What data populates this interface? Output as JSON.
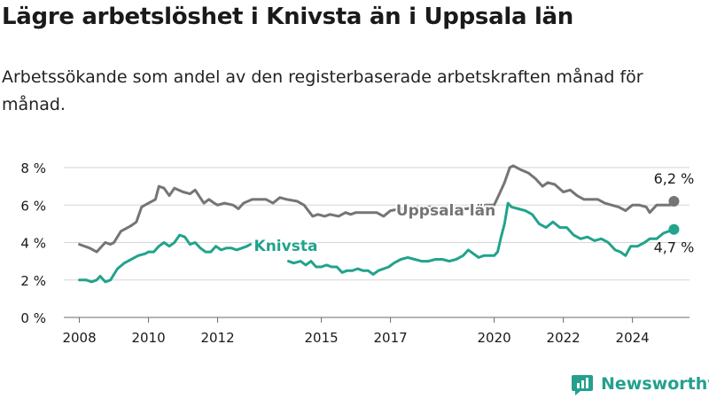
{
  "header": {
    "title": "Lägre arbetslöshet i Knivsta än i Uppsala län",
    "subtitle": "Arbetssökande som andel av den registerbaserade arbetskraften månad för månad."
  },
  "brand": {
    "name": "Newsworthy",
    "icon": "newsworthy-logo-icon",
    "color": "#24a08d"
  },
  "chart_data": {
    "type": "line",
    "ylim": [
      0,
      8
    ],
    "yticks": [
      0,
      2,
      4,
      6,
      8
    ],
    "ytick_labels": [
      "0 %",
      "2 %",
      "4 %",
      "6 %",
      "8 %"
    ],
    "xlim": [
      2007.55,
      2025.65
    ],
    "xticks": [
      2008,
      2010,
      2012,
      2015,
      2017,
      2020,
      2022,
      2024
    ],
    "xtick_labels": [
      "2008",
      "2010",
      "2012",
      "2015",
      "2017",
      "2020",
      "2022",
      "2024"
    ],
    "grid": true,
    "series": [
      {
        "name": "Uppsala län",
        "color": "#757476",
        "end_label": "6,2 %",
        "points": [
          [
            2008.0,
            3.9
          ],
          [
            2008.3,
            3.7
          ],
          [
            2008.5,
            3.5
          ],
          [
            2008.75,
            4.0
          ],
          [
            2008.9,
            3.9
          ],
          [
            2009.0,
            4.0
          ],
          [
            2009.2,
            4.6
          ],
          [
            2009.5,
            4.9
          ],
          [
            2009.65,
            5.1
          ],
          [
            2009.8,
            5.9
          ],
          [
            2010.0,
            6.1
          ],
          [
            2010.2,
            6.3
          ],
          [
            2010.3,
            7.0
          ],
          [
            2010.45,
            6.9
          ],
          [
            2010.6,
            6.5
          ],
          [
            2010.75,
            6.9
          ],
          [
            2011.0,
            6.7
          ],
          [
            2011.2,
            6.6
          ],
          [
            2011.35,
            6.8
          ],
          [
            2011.6,
            6.1
          ],
          [
            2011.75,
            6.3
          ],
          [
            2011.9,
            6.1
          ],
          [
            2012.0,
            6.0
          ],
          [
            2012.2,
            6.1
          ],
          [
            2012.45,
            6.0
          ],
          [
            2012.6,
            5.8
          ],
          [
            2012.75,
            6.1
          ],
          [
            2013.0,
            6.3
          ],
          [
            2013.2,
            6.3
          ],
          [
            2013.4,
            6.3
          ],
          [
            2013.6,
            6.1
          ],
          [
            2013.8,
            6.4
          ],
          [
            2014.0,
            6.3
          ],
          [
            2014.3,
            6.2
          ],
          [
            2014.5,
            6.0
          ],
          [
            2014.75,
            5.4
          ],
          [
            2014.9,
            5.5
          ],
          [
            2015.1,
            5.4
          ],
          [
            2015.25,
            5.5
          ],
          [
            2015.5,
            5.4
          ],
          [
            2015.7,
            5.6
          ],
          [
            2015.85,
            5.5
          ],
          [
            2016.0,
            5.6
          ],
          [
            2016.3,
            5.6
          ],
          [
            2016.6,
            5.6
          ],
          [
            2016.8,
            5.4
          ],
          [
            2017.0,
            5.7
          ],
          [
            2017.3,
            5.8
          ],
          [
            2017.5,
            5.9
          ],
          [
            2017.75,
            5.9
          ],
          [
            2018.0,
            5.9
          ],
          [
            2018.3,
            5.9
          ],
          [
            2018.6,
            5.7
          ],
          [
            2018.9,
            5.8
          ],
          [
            2019.2,
            5.8
          ],
          [
            2019.5,
            5.9
          ],
          [
            2019.75,
            6.0
          ],
          [
            2020.0,
            6.0
          ],
          [
            2020.15,
            6.6
          ],
          [
            2020.3,
            7.2
          ],
          [
            2020.45,
            8.0
          ],
          [
            2020.55,
            8.1
          ],
          [
            2020.75,
            7.9
          ],
          [
            2021.0,
            7.7
          ],
          [
            2021.2,
            7.4
          ],
          [
            2021.4,
            7.0
          ],
          [
            2021.55,
            7.2
          ],
          [
            2021.75,
            7.1
          ],
          [
            2022.0,
            6.7
          ],
          [
            2022.2,
            6.8
          ],
          [
            2022.4,
            6.5
          ],
          [
            2022.6,
            6.3
          ],
          [
            2022.8,
            6.3
          ],
          [
            2023.0,
            6.3
          ],
          [
            2023.2,
            6.1
          ],
          [
            2023.4,
            6.0
          ],
          [
            2023.6,
            5.9
          ],
          [
            2023.8,
            5.7
          ],
          [
            2024.0,
            6.0
          ],
          [
            2024.2,
            6.0
          ],
          [
            2024.4,
            5.9
          ],
          [
            2024.5,
            5.6
          ],
          [
            2024.7,
            6.0
          ],
          [
            2024.9,
            6.0
          ],
          [
            2025.0,
            6.0
          ],
          [
            2025.1,
            6.0
          ],
          [
            2025.2,
            6.2
          ]
        ]
      },
      {
        "name": "Knivsta",
        "color": "#22a38c",
        "end_label": "4,7 %",
        "segments": [
          [
            [
              2008.0,
              2.0
            ],
            [
              2008.2,
              2.0
            ],
            [
              2008.35,
              1.9
            ],
            [
              2008.5,
              2.0
            ],
            [
              2008.6,
              2.2
            ],
            [
              2008.75,
              1.9
            ],
            [
              2008.9,
              2.0
            ],
            [
              2009.1,
              2.6
            ],
            [
              2009.3,
              2.9
            ],
            [
              2009.5,
              3.1
            ],
            [
              2009.7,
              3.3
            ],
            [
              2009.9,
              3.4
            ],
            [
              2010.0,
              3.5
            ],
            [
              2010.15,
              3.5
            ],
            [
              2010.3,
              3.8
            ],
            [
              2010.45,
              4.0
            ],
            [
              2010.6,
              3.8
            ],
            [
              2010.75,
              4.0
            ],
            [
              2010.9,
              4.4
            ],
            [
              2011.05,
              4.3
            ],
            [
              2011.2,
              3.9
            ],
            [
              2011.35,
              4.0
            ],
            [
              2011.5,
              3.7
            ],
            [
              2011.65,
              3.5
            ],
            [
              2011.8,
              3.5
            ],
            [
              2011.95,
              3.8
            ],
            [
              2012.1,
              3.6
            ],
            [
              2012.25,
              3.7
            ],
            [
              2012.4,
              3.7
            ],
            [
              2012.55,
              3.6
            ],
            [
              2012.7,
              3.7
            ],
            [
              2012.85,
              3.8
            ],
            [
              2012.95,
              3.9
            ]
          ],
          [
            [
              2014.05,
              3.0
            ],
            [
              2014.2,
              2.9
            ],
            [
              2014.4,
              3.0
            ],
            [
              2014.55,
              2.8
            ],
            [
              2014.7,
              3.0
            ],
            [
              2014.85,
              2.7
            ],
            [
              2015.0,
              2.7
            ],
            [
              2015.15,
              2.8
            ],
            [
              2015.3,
              2.7
            ],
            [
              2015.45,
              2.7
            ],
            [
              2015.6,
              2.4
            ],
            [
              2015.75,
              2.5
            ],
            [
              2015.9,
              2.5
            ],
            [
              2016.05,
              2.6
            ],
            [
              2016.2,
              2.5
            ],
            [
              2016.35,
              2.5
            ],
            [
              2016.5,
              2.3
            ],
            [
              2016.65,
              2.5
            ],
            [
              2016.8,
              2.6
            ],
            [
              2016.95,
              2.7
            ],
            [
              2017.1,
              2.9
            ],
            [
              2017.3,
              3.1
            ],
            [
              2017.5,
              3.2
            ],
            [
              2017.7,
              3.1
            ],
            [
              2017.9,
              3.0
            ],
            [
              2018.1,
              3.0
            ],
            [
              2018.3,
              3.1
            ],
            [
              2018.5,
              3.1
            ],
            [
              2018.7,
              3.0
            ],
            [
              2018.9,
              3.1
            ],
            [
              2019.1,
              3.3
            ],
            [
              2019.25,
              3.6
            ],
            [
              2019.4,
              3.4
            ],
            [
              2019.55,
              3.2
            ],
            [
              2019.7,
              3.3
            ],
            [
              2019.85,
              3.3
            ],
            [
              2020.0,
              3.3
            ],
            [
              2020.1,
              3.5
            ],
            [
              2020.2,
              4.3
            ],
            [
              2020.3,
              5.0
            ],
            [
              2020.4,
              6.1
            ],
            [
              2020.5,
              5.9
            ],
            [
              2020.7,
              5.8
            ],
            [
              2020.9,
              5.7
            ],
            [
              2021.1,
              5.5
            ],
            [
              2021.3,
              5.0
            ],
            [
              2021.5,
              4.8
            ],
            [
              2021.7,
              5.1
            ],
            [
              2021.9,
              4.8
            ],
            [
              2022.1,
              4.8
            ],
            [
              2022.3,
              4.4
            ],
            [
              2022.5,
              4.2
            ],
            [
              2022.7,
              4.3
            ],
            [
              2022.9,
              4.1
            ],
            [
              2023.1,
              4.2
            ],
            [
              2023.3,
              4.0
            ],
            [
              2023.5,
              3.6
            ],
            [
              2023.65,
              3.5
            ],
            [
              2023.8,
              3.3
            ],
            [
              2023.95,
              3.8
            ],
            [
              2024.15,
              3.8
            ],
            [
              2024.35,
              4.0
            ],
            [
              2024.5,
              4.2
            ],
            [
              2024.7,
              4.2
            ],
            [
              2024.9,
              4.5
            ],
            [
              2025.05,
              4.6
            ],
            [
              2025.2,
              4.7
            ]
          ]
        ]
      }
    ],
    "annotations": [
      {
        "text": "Uppsala län",
        "series": "Uppsala län"
      },
      {
        "text": "Knivsta",
        "series": "Knivsta"
      }
    ]
  }
}
